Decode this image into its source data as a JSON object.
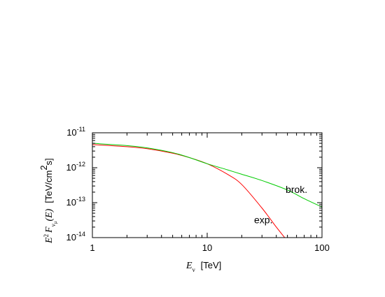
{
  "chart_data": {
    "type": "line",
    "title": "",
    "xlabel": "E_ν  [TeV]",
    "ylabel": "E² F_νμ(E)  [TeV/cm²s]",
    "xscale": "log",
    "yscale": "log",
    "xlim": [
      1,
      100
    ],
    "ylim": [
      1e-14,
      1e-11
    ],
    "grid": false,
    "x_ticks": [
      {
        "value": 1,
        "label": "1"
      },
      {
        "value": 10,
        "label": "10"
      },
      {
        "value": 100,
        "label": "100"
      }
    ],
    "y_ticks": [
      {
        "value": 1e-11,
        "base": "10",
        "exp": "-11"
      },
      {
        "value": 1e-12,
        "base": "10",
        "exp": "-12"
      },
      {
        "value": 1e-13,
        "base": "10",
        "exp": "-13"
      },
      {
        "value": 1e-14,
        "base": "10",
        "exp": "-14"
      }
    ],
    "series": [
      {
        "name": "exp.",
        "color": "#ff0000",
        "x": [
          1,
          2,
          3,
          5,
          7,
          10,
          15,
          20,
          30,
          40,
          50
        ],
        "y": [
          4.6e-12,
          4e-12,
          3.5e-12,
          2.6e-12,
          1.95e-12,
          1.3e-12,
          6.5e-13,
          3.3e-13,
          7e-14,
          2e-14,
          8e-15
        ]
      },
      {
        "name": "brok.",
        "color": "#00cc00",
        "x": [
          1,
          2,
          3,
          5,
          7,
          10,
          15,
          20,
          30,
          50,
          70,
          100
        ],
        "y": [
          5e-12,
          4.3e-12,
          3.7e-12,
          2.7e-12,
          1.95e-12,
          1.3e-12,
          8.7e-13,
          6.5e-13,
          4.3e-13,
          2.3e-13,
          1.3e-13,
          7.5e-14
        ]
      }
    ]
  },
  "axes_text": {
    "ylabel_quantity": "E",
    "ylabel_power": "2",
    "ylabel_symbol": "F",
    "ylabel_sub": "ν",
    "ylabel_subsub": "μ",
    "ylabel_arg": "(E)",
    "ylabel_unit_a": "[TeV/cm",
    "ylabel_unit_power": "2",
    "ylabel_unit_b": "s]",
    "xlabel_quantity": "E",
    "xlabel_sub": "ν",
    "xlabel_unit": "[TeV]"
  }
}
